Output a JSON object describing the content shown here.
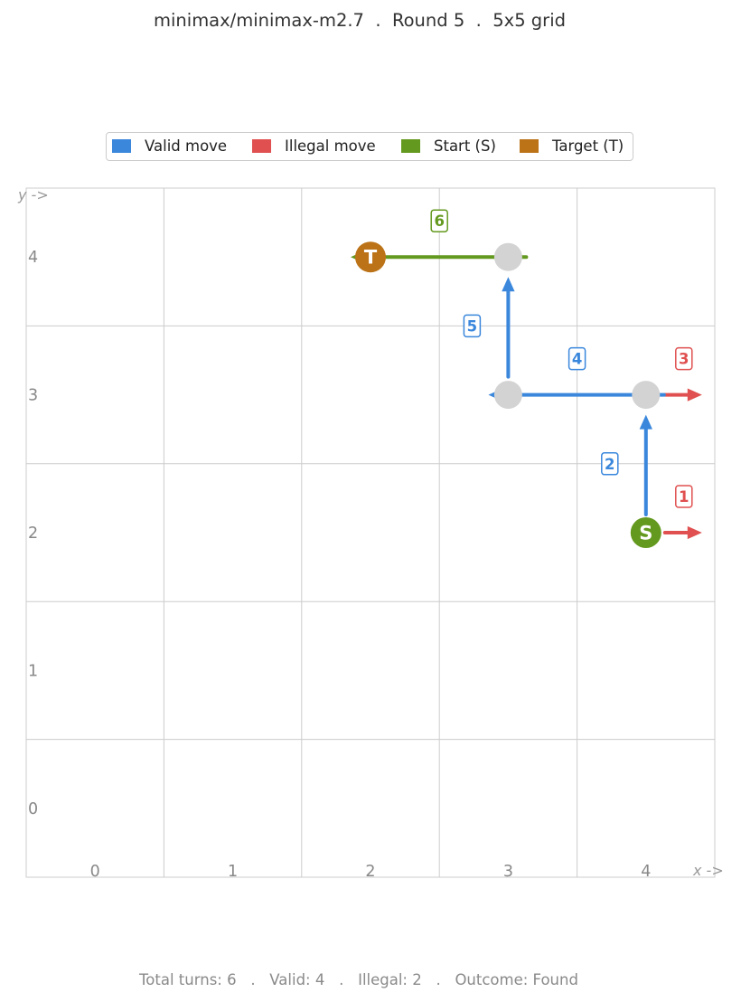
{
  "header": {
    "title": "minimax/minimax-m2.7  .  Round 5  .  5x5 grid"
  },
  "legend": {
    "items": [
      {
        "label": "Valid move",
        "color": "#3a87dc"
      },
      {
        "label": "Illegal move",
        "color": "#e05050"
      },
      {
        "label": "Start (S)",
        "color": "#64991f"
      },
      {
        "label": "Target (T)",
        "color": "#bc7318"
      }
    ]
  },
  "grid": {
    "size": 5,
    "x_ticks": [
      "0",
      "1",
      "2",
      "3",
      "4"
    ],
    "y_ticks": [
      "0",
      "1",
      "2",
      "3",
      "4"
    ],
    "x_axis_label": "x ->",
    "y_axis_label": "y ->"
  },
  "colors": {
    "valid": "#3a87dc",
    "illegal": "#e05050",
    "start": "#64991f",
    "target": "#bc7318",
    "visited": "#d3d3d3",
    "gridline": "#cccccc"
  },
  "nodes": {
    "start": {
      "x": 4,
      "y": 2,
      "label": "S"
    },
    "target": {
      "x": 2,
      "y": 4,
      "label": "T"
    },
    "visited": [
      {
        "x": 4,
        "y": 3
      },
      {
        "x": 3,
        "y": 3
      },
      {
        "x": 3,
        "y": 4
      }
    ]
  },
  "moves": [
    {
      "turn": "1",
      "from": [
        4,
        2
      ],
      "to": [
        5,
        2
      ],
      "kind": "illegal"
    },
    {
      "turn": "2",
      "from": [
        4,
        2
      ],
      "to": [
        4,
        3
      ],
      "kind": "valid"
    },
    {
      "turn": "3",
      "from": [
        4,
        3
      ],
      "to": [
        5,
        3
      ],
      "kind": "illegal"
    },
    {
      "turn": "4",
      "from": [
        4,
        3
      ],
      "to": [
        3,
        3
      ],
      "kind": "valid"
    },
    {
      "turn": "5",
      "from": [
        3,
        3
      ],
      "to": [
        3,
        4
      ],
      "kind": "valid"
    },
    {
      "turn": "6",
      "from": [
        3,
        4
      ],
      "to": [
        2,
        4
      ],
      "kind": "final"
    }
  ],
  "footer": {
    "summary": "Total turns: 6   .   Valid: 4   .   Illegal: 2   .   Outcome: Found"
  }
}
